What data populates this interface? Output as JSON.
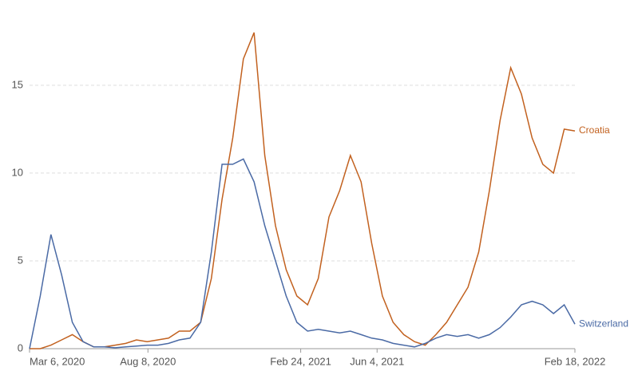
{
  "chart_data": {
    "type": "line",
    "x": [
      "2020-03-06",
      "2020-03-20",
      "2020-04-03",
      "2020-04-17",
      "2020-05-01",
      "2020-05-15",
      "2020-05-29",
      "2020-06-12",
      "2020-06-26",
      "2020-07-10",
      "2020-07-24",
      "2020-08-07",
      "2020-08-21",
      "2020-09-04",
      "2020-09-18",
      "2020-10-02",
      "2020-10-16",
      "2020-10-30",
      "2020-11-13",
      "2020-11-27",
      "2020-12-11",
      "2020-12-25",
      "2021-01-08",
      "2021-01-22",
      "2021-02-05",
      "2021-02-19",
      "2021-03-05",
      "2021-03-19",
      "2021-04-02",
      "2021-04-16",
      "2021-04-30",
      "2021-05-14",
      "2021-05-28",
      "2021-06-11",
      "2021-06-25",
      "2021-07-09",
      "2021-07-23",
      "2021-08-06",
      "2021-08-20",
      "2021-09-03",
      "2021-09-17",
      "2021-10-01",
      "2021-10-15",
      "2021-10-29",
      "2021-11-12",
      "2021-11-26",
      "2021-12-10",
      "2021-12-24",
      "2022-01-07",
      "2022-01-21",
      "2022-02-04",
      "2022-02-18"
    ],
    "series": [
      {
        "name": "Croatia",
        "color": "#c2611f",
        "values": [
          0,
          0,
          0.2,
          0.5,
          0.8,
          0.4,
          0.1,
          0.1,
          0.2,
          0.3,
          0.5,
          0.4,
          0.5,
          0.6,
          1.0,
          1.0,
          1.5,
          4,
          8.5,
          12,
          16.5,
          18,
          11,
          7,
          4.5,
          3,
          2.5,
          4,
          7.5,
          9,
          11,
          9.5,
          6,
          3,
          1.5,
          0.8,
          0.4,
          0.2,
          0.8,
          1.5,
          2.5,
          3.5,
          5.5,
          9,
          13,
          16,
          14.5,
          12,
          10.5,
          10,
          12.5,
          12.4
        ]
      },
      {
        "name": "Switzerland",
        "color": "#4a6aa5",
        "values": [
          0,
          3,
          6.5,
          4.2,
          1.5,
          0.4,
          0.1,
          0.1,
          0.05,
          0.1,
          0.15,
          0.2,
          0.2,
          0.3,
          0.5,
          0.6,
          1.5,
          5.5,
          10.5,
          10.5,
          10.8,
          9.5,
          7,
          5,
          3,
          1.5,
          1.0,
          1.1,
          1.0,
          0.9,
          1.0,
          0.8,
          0.6,
          0.5,
          0.3,
          0.2,
          0.1,
          0.3,
          0.6,
          0.8,
          0.7,
          0.8,
          0.6,
          0.8,
          1.2,
          1.8,
          2.5,
          2.7,
          2.5,
          2.0,
          2.5,
          1.4
        ]
      }
    ],
    "xlim": [
      "2020-03-06",
      "2022-02-18"
    ],
    "xticks": [
      {
        "value": "2020-03-06",
        "label": "Mar 6, 2020"
      },
      {
        "value": "2020-08-08",
        "label": "Aug 8, 2020"
      },
      {
        "value": "2021-02-24",
        "label": "Feb 24, 2021"
      },
      {
        "value": "2021-06-04",
        "label": "Jun 4, 2021"
      },
      {
        "value": "2022-02-18",
        "label": "Feb 18, 2022"
      }
    ],
    "ylim": [
      0,
      19.4
    ],
    "yticks": [
      0,
      5,
      10,
      15
    ],
    "grid": true
  }
}
